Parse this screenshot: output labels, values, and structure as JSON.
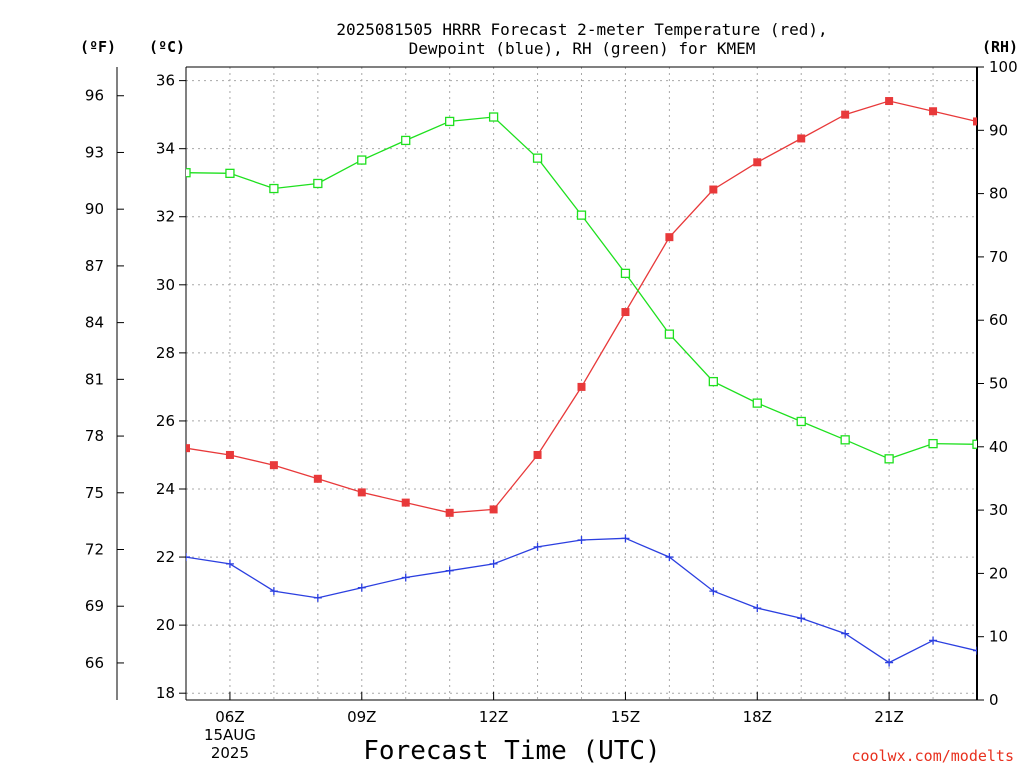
{
  "chart_data": {
    "type": "line",
    "title_line1": "2025081505 HRRR Forecast 2-meter Temperature (red),",
    "title_line2": "Dewpoint (blue), RH (green) for KMEM",
    "xlabel": "Forecast Time (UTC)",
    "credit": "coolwx.com/modelts",
    "unit_labels": {
      "fahrenheit": "(ºF)",
      "celsius": "(ºC)",
      "rh": "(RH)"
    },
    "x_hours": [
      5,
      6,
      7,
      8,
      9,
      10,
      11,
      12,
      13,
      14,
      15,
      16,
      17,
      18,
      19,
      20,
      21,
      22,
      23
    ],
    "x_range": [
      5,
      23
    ],
    "x_ticks": [
      {
        "hour": 6,
        "lines": [
          "06Z",
          "15AUG",
          "2025"
        ]
      },
      {
        "hour": 9,
        "lines": [
          "09Z"
        ]
      },
      {
        "hour": 12,
        "lines": [
          "12Z"
        ]
      },
      {
        "hour": 15,
        "lines": [
          "15Z"
        ]
      },
      {
        "hour": 18,
        "lines": [
          "18Z"
        ]
      },
      {
        "hour": 21,
        "lines": [
          "21Z"
        ]
      }
    ],
    "celsius_axis": {
      "ylim": [
        17.8,
        36.4
      ],
      "ticks": [
        18,
        20,
        22,
        24,
        26,
        28,
        30,
        32,
        34,
        36
      ]
    },
    "fahrenheit_ticks": [
      66,
      69,
      72,
      75,
      78,
      81,
      84,
      87,
      90,
      93,
      96
    ],
    "rh_axis": {
      "ylim": [
        0,
        100
      ],
      "ticks": [
        0,
        10,
        20,
        30,
        40,
        50,
        60,
        70,
        80,
        90,
        100
      ]
    },
    "series": [
      {
        "name": "Temperature",
        "color": "#e8393a",
        "marker": "filled-square",
        "axis": "celsius",
        "values": [
          25.2,
          25.0,
          24.7,
          24.3,
          23.9,
          23.6,
          23.3,
          23.4,
          25.0,
          27.0,
          29.2,
          31.4,
          32.8,
          33.6,
          34.3,
          35.0,
          35.4,
          35.1,
          34.8
        ]
      },
      {
        "name": "Dewpoint",
        "color": "#2b3fe0",
        "marker": "plus",
        "axis": "celsius",
        "values": [
          22.0,
          21.8,
          21.0,
          20.8,
          21.1,
          21.4,
          21.6,
          21.8,
          22.3,
          22.5,
          22.55,
          22.0,
          21.0,
          20.5,
          20.2,
          19.75,
          18.9,
          19.55,
          19.25
        ]
      },
      {
        "name": "RH",
        "color": "#1ee01e",
        "marker": "open-square",
        "axis": "rh",
        "values": [
          83.3,
          83.2,
          80.8,
          81.6,
          85.3,
          88.4,
          91.4,
          92.1,
          85.6,
          76.6,
          67.4,
          57.8,
          50.3,
          46.9,
          44.0,
          41.1,
          38.1,
          40.5,
          40.4
        ]
      }
    ],
    "grid": true
  }
}
